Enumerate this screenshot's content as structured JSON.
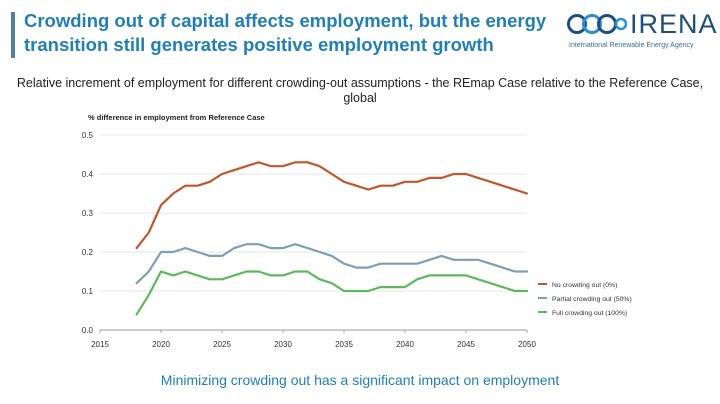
{
  "header": {
    "title_line1": "Crowding out of capital affects employment, but the energy",
    "title_line2": "transition still generates positive employment growth"
  },
  "logo": {
    "name": "IRENA",
    "tagline": "International Renewable Energy Agency",
    "icon": "irena-rings-icon"
  },
  "footer": {
    "caption": "Minimizing crowding out has a significant impact on employment"
  },
  "colors": {
    "title": "#1f7fb6",
    "no_crowding": "#c0562b",
    "partial_crowding": "#7d9fb5",
    "full_crowding": "#5cb85c"
  },
  "chart_data": {
    "type": "line",
    "title": "Relative increment of employment for different crowding-out assumptions - the REmap Case relative to the Reference Case, global",
    "ylabel": "% difference in employment from Reference Case",
    "xlabel": "",
    "xlim": [
      2015,
      2050
    ],
    "ylim": [
      0,
      0.5
    ],
    "xticks": [
      "2015",
      "2020",
      "2025",
      "2030",
      "2035",
      "2040",
      "2045",
      "2050"
    ],
    "yticks": [
      "0.0",
      "0.1",
      "0.2",
      "0.3",
      "0.4",
      "0.5"
    ],
    "grid": "horizontal",
    "legend_position": "right",
    "x": [
      2018,
      2019,
      2020,
      2021,
      2022,
      2023,
      2024,
      2025,
      2026,
      2027,
      2028,
      2029,
      2030,
      2031,
      2032,
      2033,
      2034,
      2035,
      2036,
      2037,
      2038,
      2039,
      2040,
      2041,
      2042,
      2043,
      2044,
      2045,
      2046,
      2047,
      2048,
      2049,
      2050
    ],
    "series": [
      {
        "name": "No crowding out (0%)",
        "values": [
          0.21,
          0.25,
          0.32,
          0.35,
          0.37,
          0.37,
          0.38,
          0.4,
          0.41,
          0.42,
          0.43,
          0.42,
          0.42,
          0.43,
          0.43,
          0.42,
          0.4,
          0.38,
          0.37,
          0.36,
          0.37,
          0.37,
          0.38,
          0.38,
          0.39,
          0.39,
          0.4,
          0.4,
          0.39,
          0.38,
          0.37,
          0.36,
          0.35
        ]
      },
      {
        "name": "Partial crowding out (50%)",
        "values": [
          0.12,
          0.15,
          0.2,
          0.2,
          0.21,
          0.2,
          0.19,
          0.19,
          0.21,
          0.22,
          0.22,
          0.21,
          0.21,
          0.22,
          0.21,
          0.2,
          0.19,
          0.17,
          0.16,
          0.16,
          0.17,
          0.17,
          0.17,
          0.17,
          0.18,
          0.19,
          0.18,
          0.18,
          0.18,
          0.17,
          0.16,
          0.15,
          0.15
        ]
      },
      {
        "name": "Full crowding out (100%)",
        "values": [
          0.04,
          0.09,
          0.15,
          0.14,
          0.15,
          0.14,
          0.13,
          0.13,
          0.14,
          0.15,
          0.15,
          0.14,
          0.14,
          0.15,
          0.15,
          0.13,
          0.12,
          0.1,
          0.1,
          0.1,
          0.11,
          0.11,
          0.11,
          0.13,
          0.14,
          0.14,
          0.14,
          0.14,
          0.13,
          0.12,
          0.11,
          0.1,
          0.1
        ]
      }
    ]
  }
}
